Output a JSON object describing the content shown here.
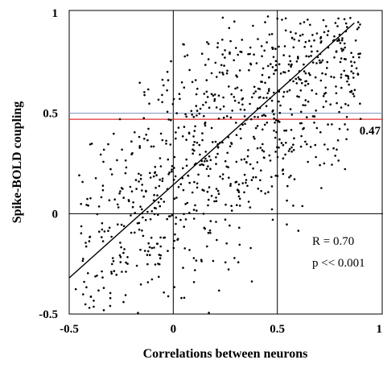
{
  "chart_data": {
    "type": "scatter",
    "title": "",
    "xlabel": "Correlations between neurons",
    "ylabel": "Spike-BOLD coupling",
    "xlim": [
      -0.5,
      1
    ],
    "ylim": [
      -0.5,
      1
    ],
    "x_ticks": [
      "-0.5",
      "0",
      "0.5",
      "1"
    ],
    "y_ticks": [
      "-0.5",
      "0",
      "0.5",
      "1"
    ],
    "grid": false,
    "reference_lines": {
      "vertical": [
        0,
        0.5
      ],
      "horizontal": [
        0,
        0.5
      ]
    },
    "threshold": {
      "value": 0.47,
      "label": "0.47",
      "color": "#e03030"
    },
    "half_line_color": "#7a8fb8",
    "regression": {
      "x": [
        -0.5,
        0.87
      ],
      "y": [
        -0.32,
        0.95
      ]
    },
    "stats": {
      "r_text": "R = 0.70",
      "p_text": "p << 0.001"
    },
    "point_count": 900,
    "point_color": "#000000"
  }
}
